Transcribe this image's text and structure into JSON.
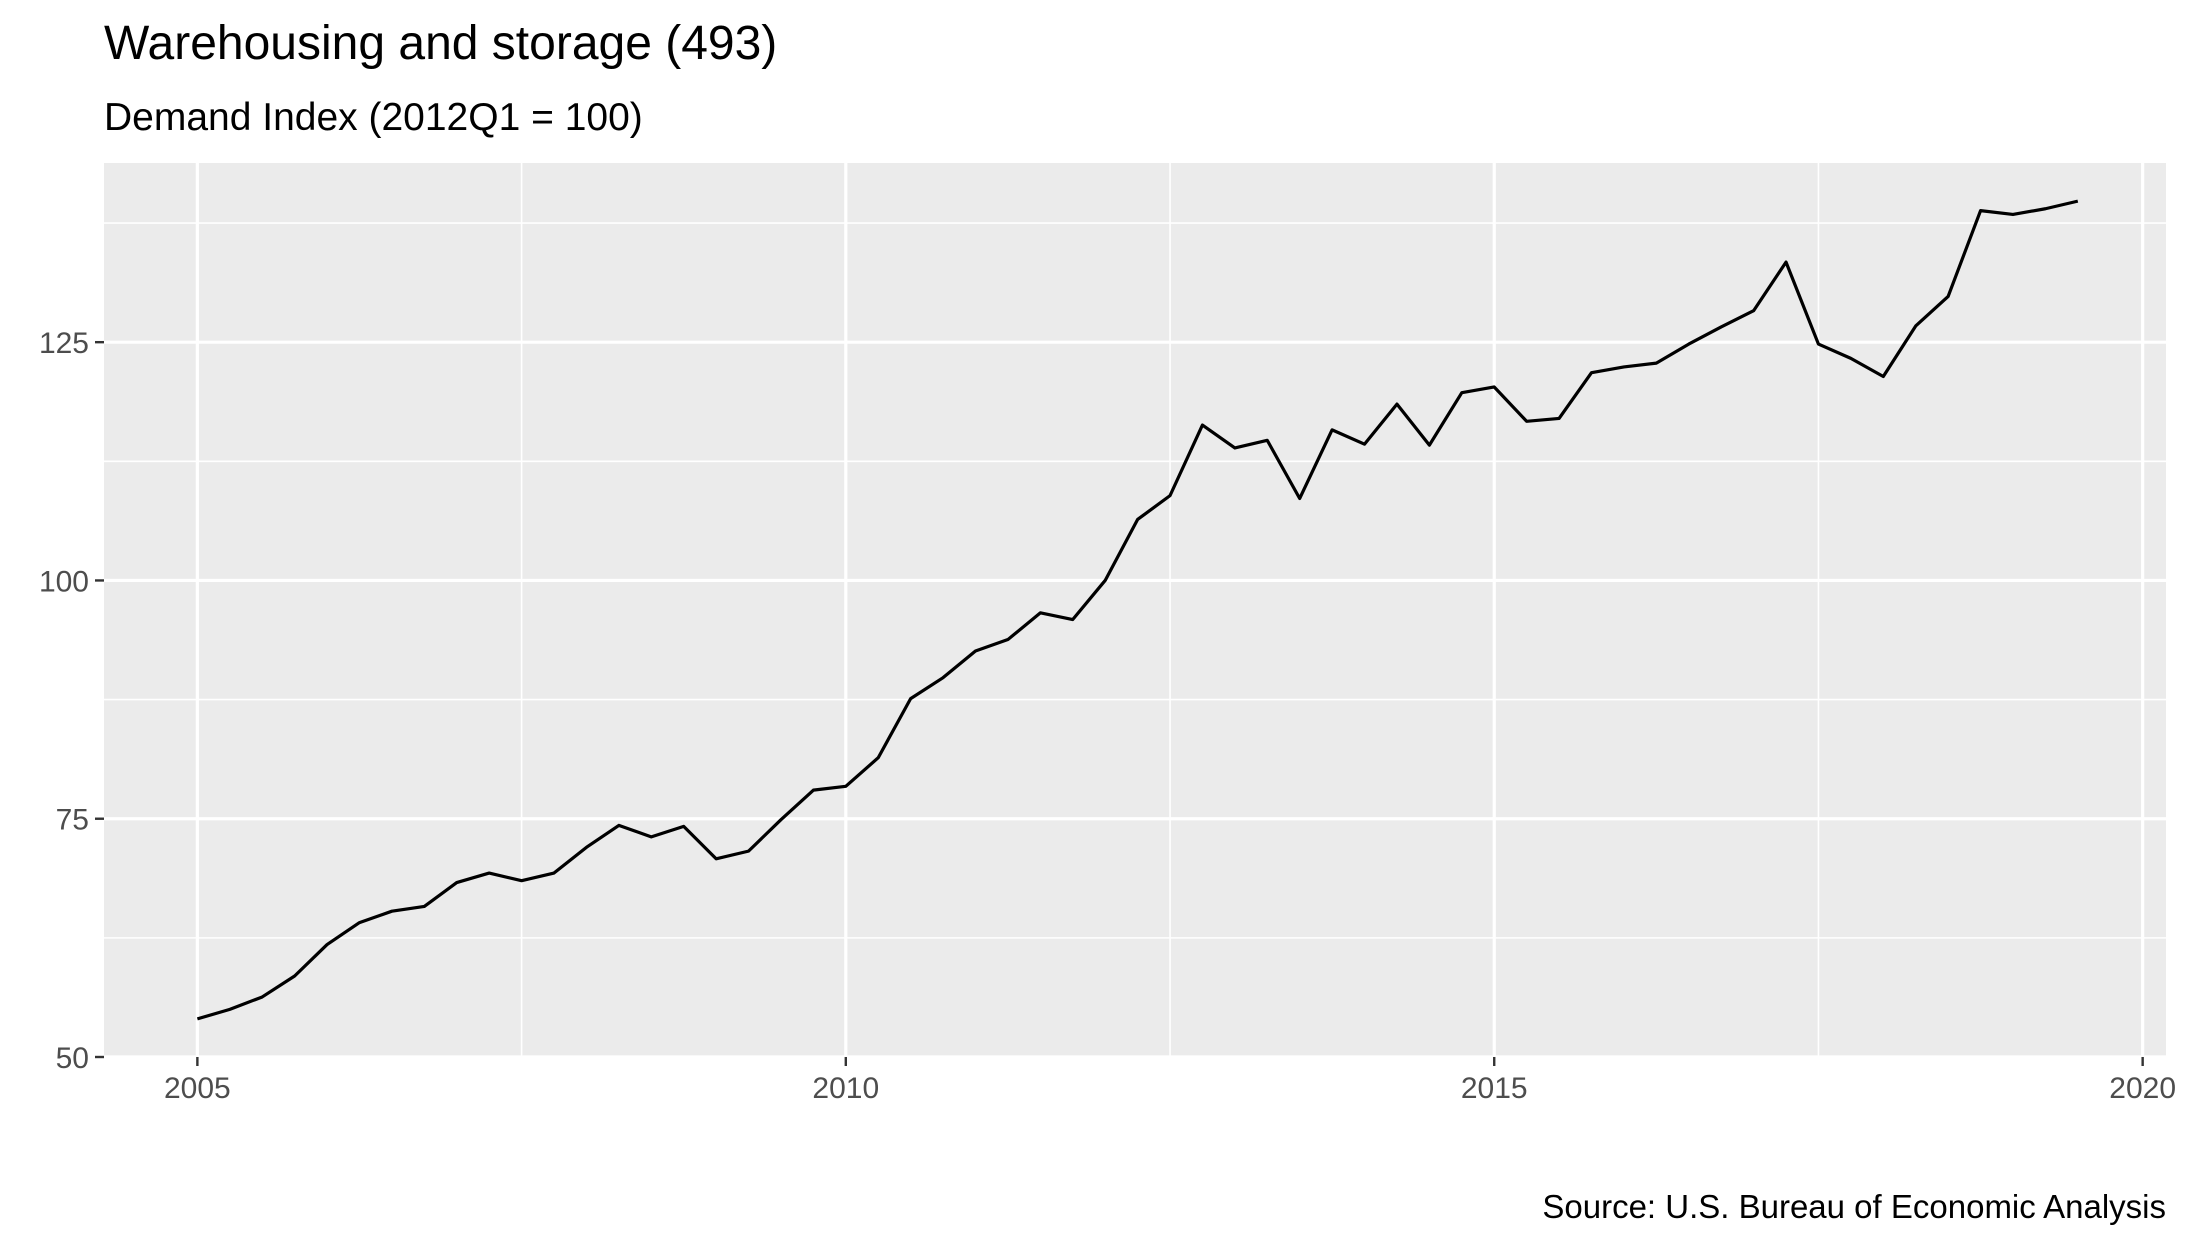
{
  "chart_data": {
    "type": "line",
    "title": "Warehousing and storage (493)",
    "subtitle": "Demand Index (2012Q1 = 100)",
    "caption": "Source: U.S. Bureau of Economic Analysis",
    "xlabel": "",
    "ylabel": "",
    "x_ticks": [
      2005,
      2010,
      2015,
      2020
    ],
    "y_ticks": [
      50,
      75,
      100,
      125
    ],
    "xlim": [
      2004.28,
      2020.18
    ],
    "ylim": [
      50,
      143.8
    ],
    "grid": true,
    "legend": "none",
    "colors": {
      "line": "#000000",
      "panel": "#ebebeb",
      "grid": "#ffffff",
      "tick_label": "#4d4d4d"
    },
    "series": [
      {
        "x": [
          2005.0,
          2005.25,
          2005.5,
          2005.75,
          2006.0,
          2006.25,
          2006.5,
          2006.75,
          2007.0,
          2007.25,
          2007.5,
          2007.75,
          2008.0,
          2008.25,
          2008.5,
          2008.75,
          2009.0,
          2009.25,
          2009.5,
          2009.75,
          2010.0,
          2010.25,
          2010.5,
          2010.75,
          2011.0,
          2011.25,
          2011.5,
          2011.75,
          2012.0,
          2012.25,
          2012.5,
          2012.75,
          2013.0,
          2013.25,
          2013.5,
          2013.75,
          2014.0,
          2014.25,
          2014.5,
          2014.75,
          2015.0,
          2015.25,
          2015.5,
          2015.75,
          2016.0,
          2016.25,
          2016.5,
          2016.75,
          2017.0,
          2017.25,
          2017.5,
          2017.75,
          2018.0,
          2018.25,
          2018.5,
          2018.75,
          2019.0,
          2019.25,
          2019.5
        ],
        "values": [
          54.0,
          55.0,
          56.3,
          58.5,
          61.8,
          64.1,
          65.3,
          65.8,
          68.3,
          69.3,
          68.5,
          69.3,
          72.0,
          74.3,
          73.1,
          74.2,
          70.8,
          71.6,
          74.9,
          78.0,
          78.4,
          81.4,
          87.6,
          89.8,
          92.6,
          93.8,
          96.6,
          95.9,
          100.0,
          106.4,
          108.9,
          116.3,
          113.9,
          114.7,
          108.6,
          115.8,
          114.3,
          118.5,
          114.2,
          119.7,
          120.3,
          116.7,
          117.0,
          121.8,
          122.4,
          122.8,
          124.8,
          126.6,
          128.3,
          133.4,
          124.8,
          123.3,
          121.4,
          126.7,
          129.8,
          138.8,
          138.4,
          139.0,
          139.8
        ]
      }
    ]
  }
}
